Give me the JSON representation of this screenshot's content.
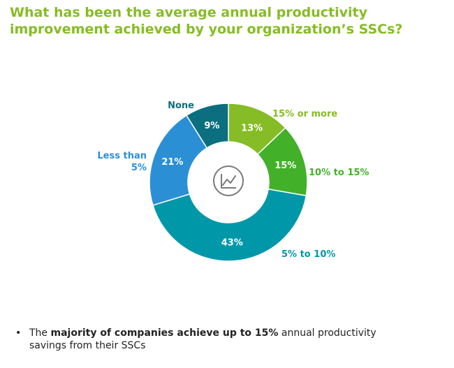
{
  "title": {
    "line1": "What has been the average annual productivity",
    "line2": "improvement achieved by your organization’s SSCs?"
  },
  "chart_data": {
    "type": "pie",
    "donut": true,
    "center_icon": "line-chart-icon",
    "slices": [
      {
        "label": "15% or more",
        "value": 13,
        "value_label": "13%",
        "color": "#86bc25",
        "label_color": "#86bc25"
      },
      {
        "label": "10% to 15%",
        "value": 15,
        "value_label": "15%",
        "color": "#43b02a",
        "label_color": "#43b02a"
      },
      {
        "label": "5% to 10%",
        "value": 43,
        "value_label": "43%",
        "color": "#0097a9",
        "label_color": "#0097a9"
      },
      {
        "label_lines": [
          "Less than",
          "5%"
        ],
        "value": 21,
        "value_label": "21%",
        "color": "#2b8fd6",
        "label_color": "#2b8fd6"
      },
      {
        "label": "None",
        "value": 9,
        "value_label": "9%",
        "color": "#0b6f7f",
        "label_color": "#0b6f7f"
      }
    ]
  },
  "bullet": {
    "marker": "•",
    "prefix": "The ",
    "bold": "majority of companies achieve up to 15%",
    "line1_rest": " annual productivity",
    "line2": "savings from their SSCs"
  }
}
